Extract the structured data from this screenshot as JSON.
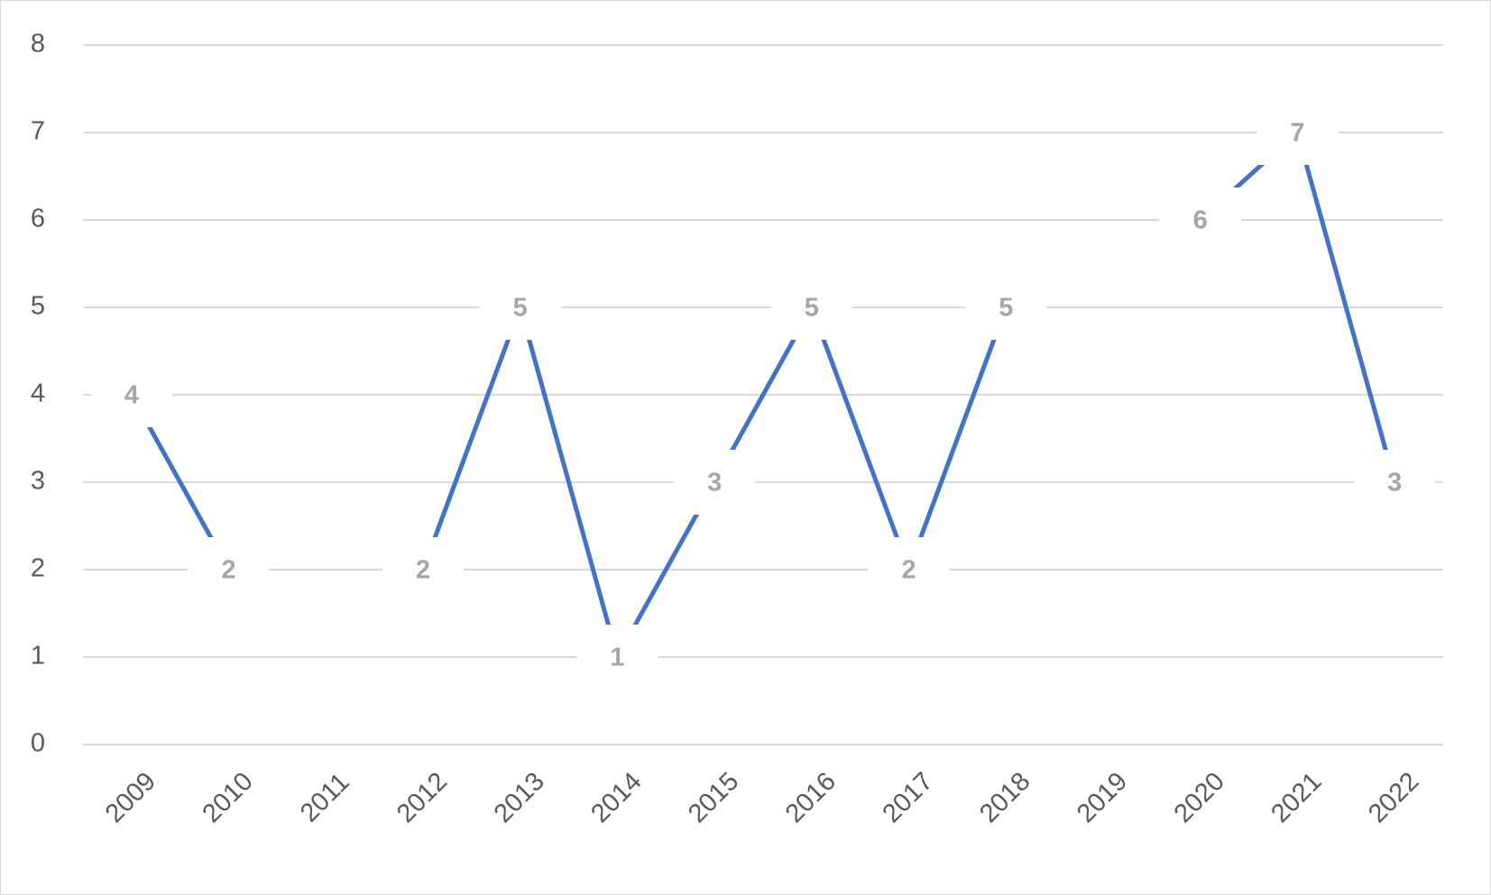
{
  "chart_data": {
    "type": "line",
    "categories": [
      "2009",
      "2010",
      "2011",
      "2012",
      "2013",
      "2014",
      "2015",
      "2016",
      "2017",
      "2018",
      "2019",
      "2020",
      "2021",
      "2022"
    ],
    "series": [
      {
        "name": "Series1",
        "color": "#4472c4",
        "values": [
          4,
          2,
          null,
          2,
          5,
          1,
          3,
          5,
          2,
          5,
          null,
          6,
          7,
          3
        ]
      }
    ],
    "ylim": [
      0,
      8
    ],
    "yticks": [
      0,
      1,
      2,
      3,
      4,
      5,
      6,
      7,
      8
    ],
    "grid": true,
    "data_labels": true
  }
}
